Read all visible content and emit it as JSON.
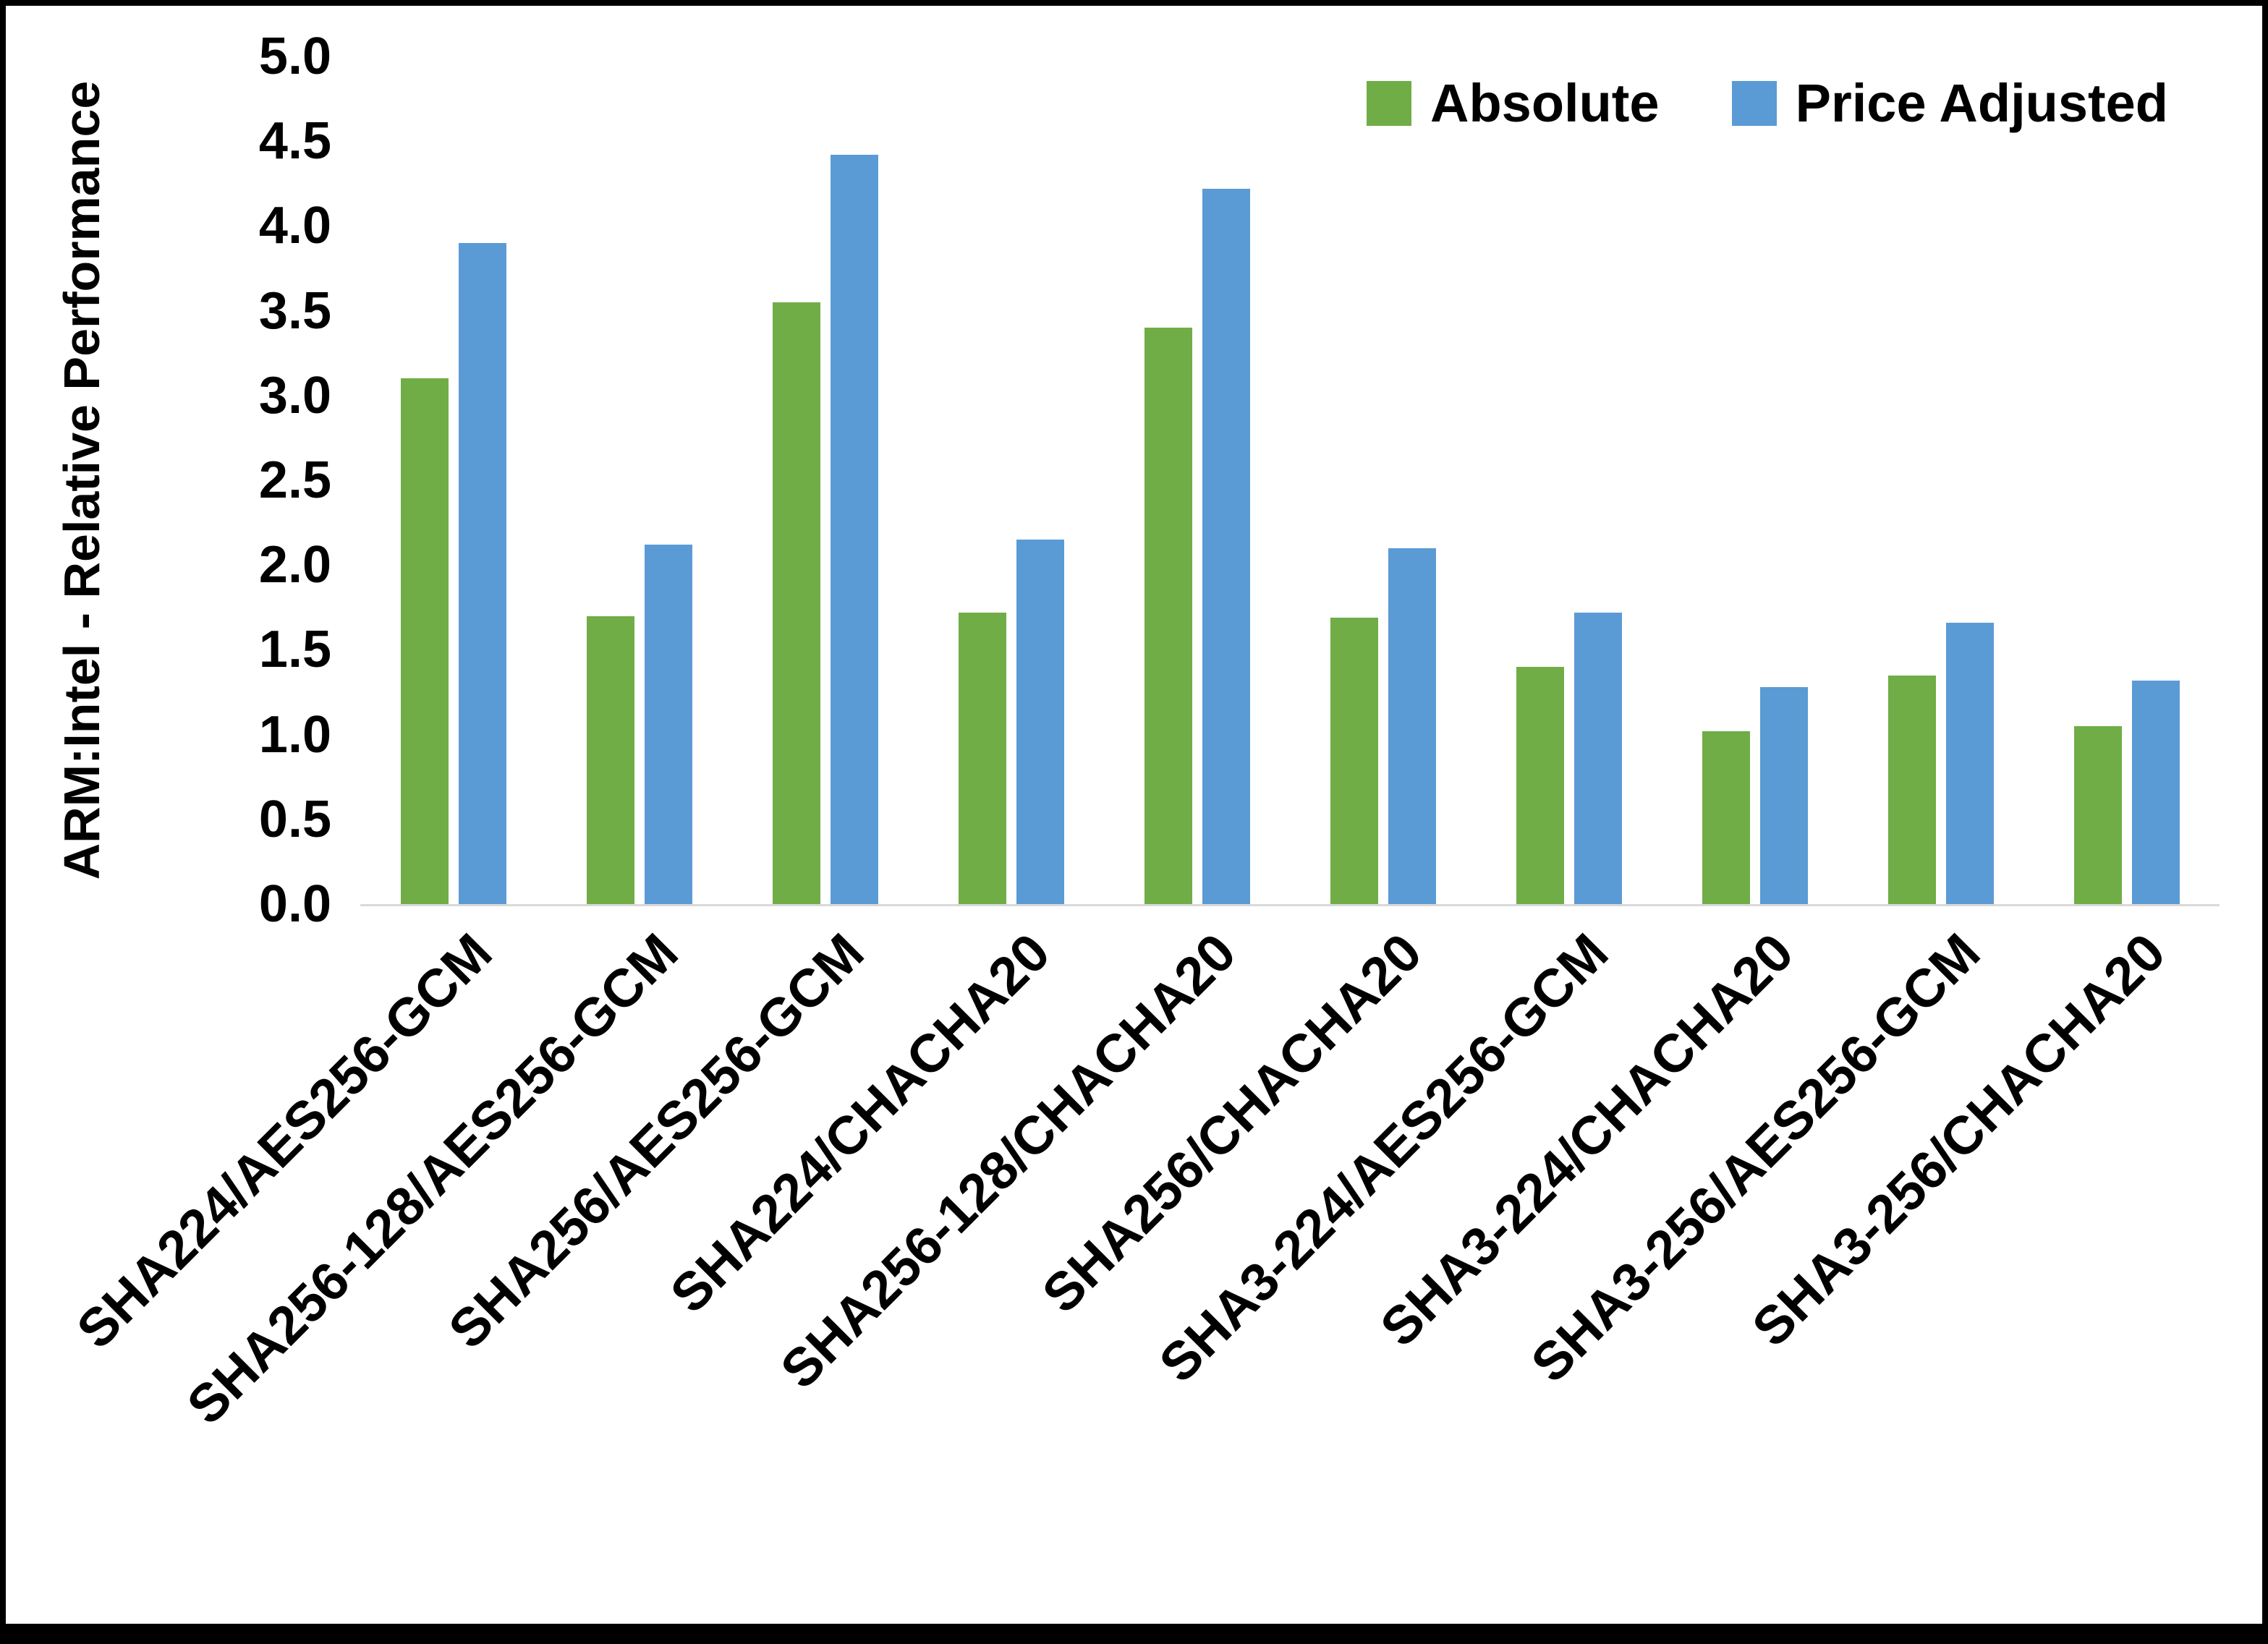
{
  "chart_data": {
    "type": "bar",
    "title": "",
    "xlabel": "",
    "ylabel": "ARM:Intel - Relative Performance",
    "ylim": [
      0,
      5
    ],
    "ytick_step": 0.5,
    "ytick_labels": [
      "0.0",
      "0.5",
      "1.0",
      "1.5",
      "2.0",
      "2.5",
      "3.0",
      "3.5",
      "4.0",
      "4.5",
      "5.0"
    ],
    "grid": false,
    "legend_position": "top-right",
    "categories": [
      "SHA224/AES256-GCM",
      "SHA256-128/AES256-GCM",
      "SHA256/AES256-GCM",
      "SHA224/CHACHA20",
      "SHA256-128/CHACHA20",
      "SHA256/CHACHA20",
      "SHA3-224/AES256-GCM",
      "SHA3-224/CHACHA20",
      "SHA3-256/AES256-GCM",
      "SHA3-256/CHACHA20"
    ],
    "series": [
      {
        "name": "Absolute",
        "color": "#70AD47",
        "values": [
          3.1,
          1.7,
          3.55,
          1.72,
          3.4,
          1.69,
          1.4,
          1.02,
          1.35,
          1.05
        ]
      },
      {
        "name": "Price Adjusted",
        "color": "#5B9BD5",
        "values": [
          3.9,
          2.12,
          4.42,
          2.15,
          4.22,
          2.1,
          1.72,
          1.28,
          1.66,
          1.32
        ]
      }
    ]
  },
  "colors": {
    "axis_line": "#D9D9D9",
    "text": "#000000",
    "frame": "#000000"
  }
}
